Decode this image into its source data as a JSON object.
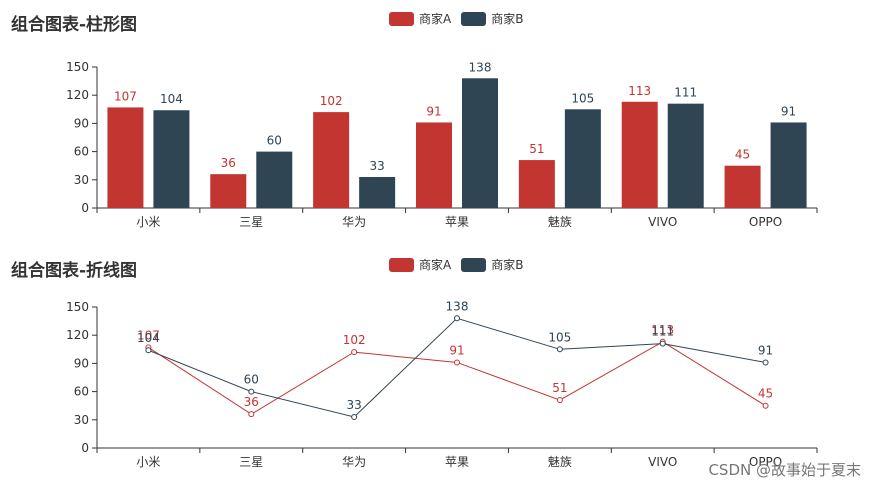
{
  "colors": {
    "series_a": "#c23531",
    "series_b": "#2f4554",
    "axis": "#333333"
  },
  "watermark": "CSDN @故事始于夏末",
  "chart_data": [
    {
      "type": "bar",
      "title": "组合图表-柱形图",
      "categories": [
        "小米",
        "三星",
        "华为",
        "苹果",
        "魅族",
        "VIVO",
        "OPPO"
      ],
      "series": [
        {
          "name": "商家A",
          "values": [
            107,
            36,
            102,
            91,
            51,
            113,
            45
          ]
        },
        {
          "name": "商家B",
          "values": [
            104,
            60,
            33,
            138,
            105,
            111,
            91
          ]
        }
      ],
      "ylim": [
        0,
        150
      ],
      "yticks": [
        "0",
        "30",
        "60",
        "90",
        "120",
        "150"
      ],
      "legend_position": "top-center",
      "grid": false
    },
    {
      "type": "line",
      "title": "组合图表-折线图",
      "categories": [
        "小米",
        "三星",
        "华为",
        "苹果",
        "魅族",
        "VIVO",
        "OPPO"
      ],
      "series": [
        {
          "name": "商家A",
          "values": [
            107,
            36,
            102,
            91,
            51,
            113,
            45
          ]
        },
        {
          "name": "商家B",
          "values": [
            104,
            60,
            33,
            138,
            105,
            111,
            91
          ]
        }
      ],
      "ylim": [
        0,
        150
      ],
      "yticks": [
        "0",
        "30",
        "60",
        "90",
        "120",
        "150"
      ],
      "legend_position": "top-center",
      "grid": false
    }
  ]
}
